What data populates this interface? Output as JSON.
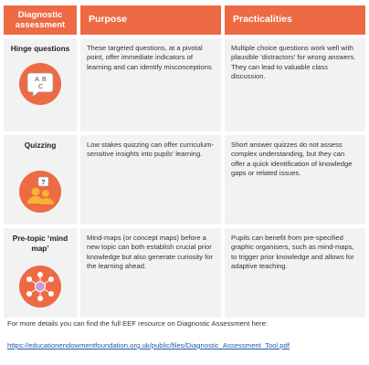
{
  "header": {
    "col1": "Diagnostic assessment",
    "col2": "Purpose",
    "col3": "Practicalities"
  },
  "rows": [
    {
      "title": "Hinge questions",
      "icon": "abc-choice-icon",
      "purpose": "These targeted questions, at a pivotal point, offer immediate indicators of learning and can identify misconceptions",
      "practicalities": "Multiple choice questions work well with plausible ‘distractors’ for wrong answers. They can lead to valuable class discussion."
    },
    {
      "title": "Quizzing",
      "icon": "quiz-people-icon",
      "purpose": "Low stakes quizzing can offer curriculum-sensitive insights into pupils’ learning.",
      "practicalities": "Short answer quizzes do not assess complex understanding, but they can offer a quick identification of knowledge gaps or related issues."
    },
    {
      "title": "Pre-topic ‘mind map’",
      "icon": "mind-map-icon",
      "purpose": "Mind-maps (or concept maps) before a new topic can both establish crucial prior knowledge but also generate curiosity for the learning ahead.",
      "practicalities": "Pupils can benefit from pre-specified graphic organisers, such as mind-maps, to trigger prior knowledge and allows for adaptive teaching."
    }
  ],
  "footer": {
    "text": "For more details you can find the full EEF resource on Diagnostic Assessment here:",
    "link": "https://educationendowmentfoundation.org.uk/public/files/Diagnostic_Assessment_Tool.pdf"
  },
  "colors": {
    "accent": "#ed6a45",
    "cell_bg": "#f2f2f2",
    "link": "#1f5aa6"
  }
}
